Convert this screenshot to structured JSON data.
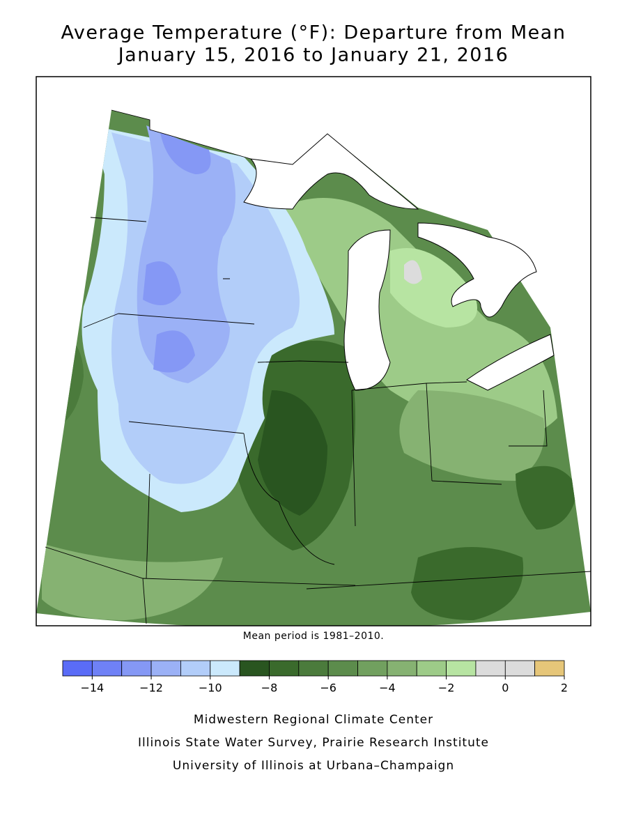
{
  "title": [
    "Average Temperature (°F): Departure from Mean",
    "January 15, 2016 to January 21, 2016"
  ],
  "note": "Mean period is 1981–2010.",
  "legend": {
    "bins": [
      -15,
      -14,
      -13,
      -12,
      -11,
      -10,
      -9,
      -8,
      -7,
      -6,
      -5,
      -4,
      -3,
      -2,
      -1,
      0,
      1,
      2
    ],
    "colors": [
      "#5a6cf7",
      "#6f81f6",
      "#8598f5",
      "#9bb1f6",
      "#b2cdf9",
      "#cbe9fc",
      "#295520",
      "#3a6a2c",
      "#4b7b3c",
      "#5c8c4c",
      "#71a05f",
      "#86b272",
      "#9dcb88",
      "#b7e4a2",
      "#dcdcdc",
      "#dcdcdc",
      "#e6c679"
    ],
    "ticks": [
      {
        "value": -14,
        "label": "−14"
      },
      {
        "value": -12,
        "label": "−12"
      },
      {
        "value": -10,
        "label": "−10"
      },
      {
        "value": -8,
        "label": "−8"
      },
      {
        "value": -6,
        "label": "−6"
      },
      {
        "value": -4,
        "label": "−4"
      },
      {
        "value": -2,
        "label": "−2"
      },
      0,
      2
    ]
  },
  "credits": [
    "Midwestern Regional Climate Center",
    "Illinois State Water Survey, Prairie Research Institute",
    "University of Illinois at Urbana–Champaign"
  ]
}
